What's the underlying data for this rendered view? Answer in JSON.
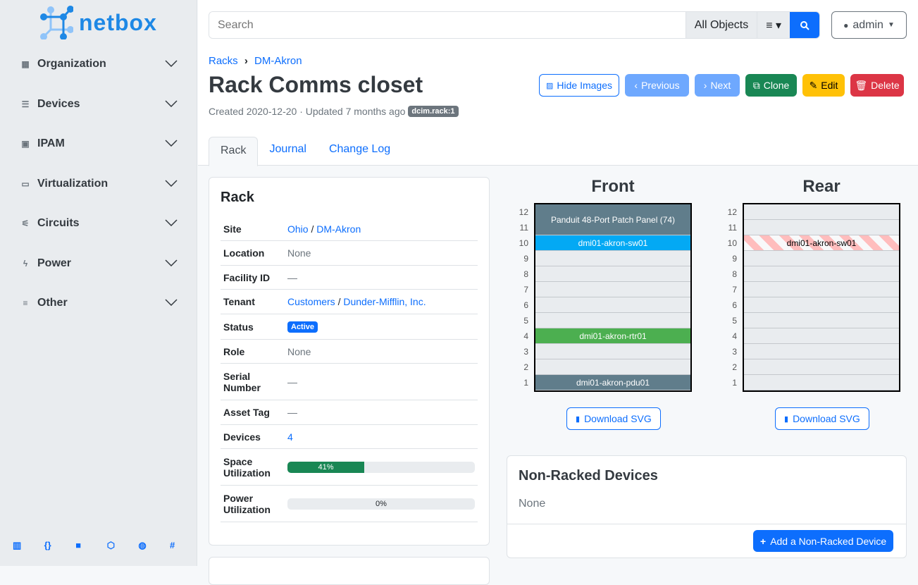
{
  "brand": {
    "name": "netbox"
  },
  "sidebar": {
    "items": [
      {
        "label": "Organization",
        "icon": "building-icon"
      },
      {
        "label": "Devices",
        "icon": "server-icon"
      },
      {
        "label": "IPAM",
        "icon": "ip-icon"
      },
      {
        "label": "Virtualization",
        "icon": "monitor-icon"
      },
      {
        "label": "Circuits",
        "icon": "circuit-icon"
      },
      {
        "label": "Power",
        "icon": "flash-icon"
      },
      {
        "label": "Other",
        "icon": "notes-icon"
      }
    ],
    "footer_icons": [
      "docs-icon",
      "api-icon",
      "book-icon",
      "graphql-icon",
      "github-icon",
      "slack-icon"
    ]
  },
  "search": {
    "placeholder": "Search",
    "scope": "All Objects"
  },
  "user": {
    "name": "admin"
  },
  "breadcrumb": [
    "Racks",
    "DM-Akron"
  ],
  "page": {
    "title": "Rack Comms closet",
    "created": "Created 2020-12-20 · Updated 7 months ago",
    "tag": "dcim.rack:1"
  },
  "actions": {
    "hide_images": "Hide Images",
    "previous": "Previous",
    "next": "Next",
    "clone": "Clone",
    "edit": "Edit",
    "delete": "Delete"
  },
  "tabs": [
    "Rack",
    "Journal",
    "Change Log"
  ],
  "rack_card": {
    "title": "Rack",
    "rows": {
      "site": {
        "label": "Site",
        "region": "Ohio",
        "site": "DM-Akron"
      },
      "location": {
        "label": "Location",
        "value": "None"
      },
      "facility": {
        "label": "Facility ID",
        "value": "—"
      },
      "tenant": {
        "label": "Tenant",
        "group": "Customers",
        "tenant": "Dunder-Mifflin, Inc."
      },
      "status": {
        "label": "Status",
        "value": "Active"
      },
      "role": {
        "label": "Role",
        "value": "None"
      },
      "serial": {
        "label": "Serial Number",
        "value": "—"
      },
      "asset": {
        "label": "Asset Tag",
        "value": "—"
      },
      "devices": {
        "label": "Devices",
        "value": "4"
      },
      "space": {
        "label": "Space Utilization",
        "value": "41%",
        "percent": 41
      },
      "power": {
        "label": "Power Utilization",
        "value": "0%",
        "percent": 0
      }
    }
  },
  "elevations": {
    "front_title": "Front",
    "rear_title": "Rear",
    "units": [
      "12",
      "11",
      "10",
      "9",
      "8",
      "7",
      "6",
      "5",
      "4",
      "3",
      "2",
      "1"
    ],
    "front_devices": [
      {
        "name": "Panduit 48-Port Patch Panel (74)",
        "top": 12,
        "height": 2,
        "color": "#607d8b"
      },
      {
        "name": "dmi01-akron-sw01",
        "top": 10,
        "height": 1,
        "color": "#03a9f4"
      },
      {
        "name": "dmi01-akron-rtr01",
        "top": 4,
        "height": 1,
        "color": "#4caf50"
      },
      {
        "name": "dmi01-akron-pdu01",
        "top": 1,
        "height": 1,
        "color": "#607d8b"
      }
    ],
    "rear_devices": [
      {
        "name": "dmi01-akron-sw01",
        "top": 10,
        "height": 1
      }
    ],
    "download": "Download SVG"
  },
  "non_racked": {
    "title": "Non-Racked Devices",
    "value": "None",
    "add": "Add a Non-Racked Device"
  }
}
